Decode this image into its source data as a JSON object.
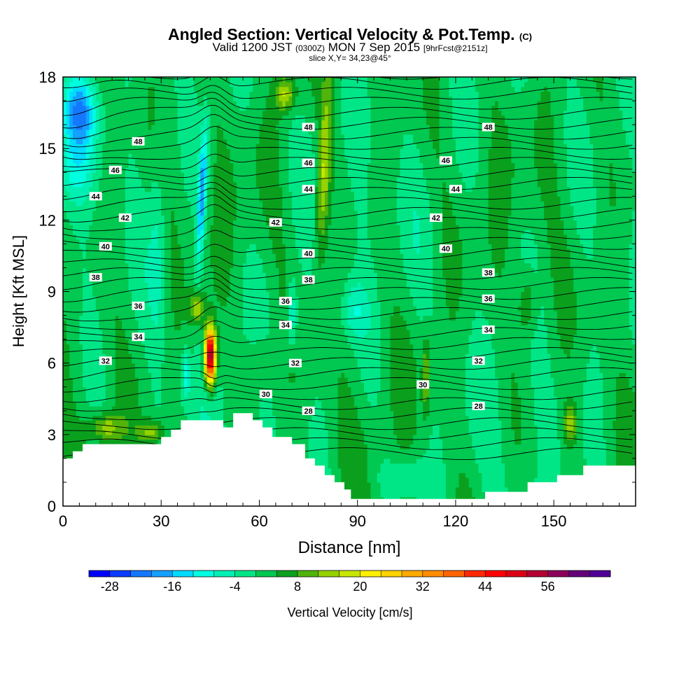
{
  "header": {
    "title": "Angled Section: Vertical Velocity & Pot.Temp.",
    "title_suffix": "(C)",
    "valid_a": "Valid 1200 JST",
    "valid_utc": "(0300Z)",
    "valid_b": "MON 7 Sep 2015",
    "fcst": "[9hrFcst@2151z]",
    "slice": "slice X,Y= 34,23@45°"
  },
  "chart_data": {
    "type": "heatmap",
    "title": "Angled Section: Vertical Velocity & Pot.Temp.",
    "xlabel": "Distance [nm]",
    "ylabel": "Height [Kft MSL]",
    "xlim": [
      0,
      175
    ],
    "ylim": [
      0,
      18
    ],
    "xticks": [
      0,
      30,
      60,
      90,
      120,
      150
    ],
    "yticks": [
      0,
      3,
      6,
      9,
      12,
      15,
      18
    ],
    "colorbar": {
      "label": "Vertical Velocity [cm/s]",
      "min": -32,
      "step": 4,
      "tick_labels": [
        -28,
        -16,
        -4,
        8,
        20,
        32,
        44,
        56
      ],
      "colors": [
        "#0000ff",
        "#0a3cff",
        "#1478ff",
        "#14a0ff",
        "#00dcff",
        "#00ffe0",
        "#00f0b4",
        "#00e687",
        "#00c850",
        "#0aa01e",
        "#50b40a",
        "#96d200",
        "#c8e600",
        "#fff000",
        "#ffd200",
        "#ffaa00",
        "#ff8c00",
        "#ff6400",
        "#ff2800",
        "#ff0000",
        "#dc0014",
        "#b40032",
        "#8c005a",
        "#640078",
        "#500096"
      ]
    },
    "features": [
      {
        "kind": "updraft",
        "x": 45,
        "height": 6.3,
        "peak": 60
      },
      {
        "kind": "downdraft",
        "x": 42,
        "height": 13,
        "min": -20
      },
      {
        "kind": "downdraft",
        "x": 6,
        "height": 16.5,
        "min": -20
      },
      {
        "kind": "downdraft",
        "x": 70,
        "height": 8,
        "min": -12
      },
      {
        "kind": "downdraft",
        "x": 38,
        "height": 5,
        "min": -12
      }
    ],
    "terrain": [
      [
        0,
        2
      ],
      [
        3,
        2
      ],
      [
        3,
        2.3
      ],
      [
        6,
        2.3
      ],
      [
        6,
        2.6
      ],
      [
        30,
        2.6
      ],
      [
        30,
        2.9
      ],
      [
        33,
        2.9
      ],
      [
        33,
        3.2
      ],
      [
        36,
        3.2
      ],
      [
        36,
        3.6
      ],
      [
        49,
        3.6
      ],
      [
        49,
        3.3
      ],
      [
        52,
        3.3
      ],
      [
        52,
        3.9
      ],
      [
        58,
        3.9
      ],
      [
        58,
        3.6
      ],
      [
        61,
        3.6
      ],
      [
        61,
        3.3
      ],
      [
        64,
        3.3
      ],
      [
        64,
        2.9
      ],
      [
        70,
        2.9
      ],
      [
        70,
        2.6
      ],
      [
        74,
        2.6
      ],
      [
        74,
        2
      ],
      [
        77,
        2
      ],
      [
        77,
        1.7
      ],
      [
        80,
        1.7
      ],
      [
        80,
        1.3
      ],
      [
        83,
        1.3
      ],
      [
        83,
        1
      ],
      [
        86,
        1
      ],
      [
        86,
        0.7
      ],
      [
        88,
        0.7
      ],
      [
        88,
        0.3
      ],
      [
        129,
        0.3
      ],
      [
        129,
        0.6
      ],
      [
        142,
        0.6
      ],
      [
        142,
        1
      ],
      [
        151,
        1
      ],
      [
        151,
        1.3
      ],
      [
        159,
        1.3
      ],
      [
        159,
        1.7
      ],
      [
        175,
        1.7
      ]
    ],
    "potential_temperature": {
      "units": "C",
      "label_values": [
        28,
        30,
        32,
        34,
        36,
        38,
        40,
        42,
        44,
        46,
        48
      ],
      "labels": [
        {
          "x": 23,
          "y": 15.3,
          "v": 48
        },
        {
          "x": 75,
          "y": 15.9,
          "v": 48
        },
        {
          "x": 130,
          "y": 15.9,
          "v": 48
        },
        {
          "x": 16,
          "y": 14.1,
          "v": 46
        },
        {
          "x": 75,
          "y": 14.4,
          "v": 46
        },
        {
          "x": 117,
          "y": 14.5,
          "v": 46
        },
        {
          "x": 10,
          "y": 13,
          "v": 44
        },
        {
          "x": 75,
          "y": 13.3,
          "v": 44
        },
        {
          "x": 120,
          "y": 13.3,
          "v": 44
        },
        {
          "x": 19,
          "y": 12.1,
          "v": 42
        },
        {
          "x": 65,
          "y": 11.9,
          "v": 42
        },
        {
          "x": 114,
          "y": 12.1,
          "v": 42
        },
        {
          "x": 13,
          "y": 10.9,
          "v": 40
        },
        {
          "x": 75,
          "y": 10.6,
          "v": 40
        },
        {
          "x": 117,
          "y": 10.8,
          "v": 40
        },
        {
          "x": 10,
          "y": 9.6,
          "v": 38
        },
        {
          "x": 75,
          "y": 9.5,
          "v": 38
        },
        {
          "x": 130,
          "y": 9.8,
          "v": 38
        },
        {
          "x": 23,
          "y": 8.4,
          "v": 36
        },
        {
          "x": 68,
          "y": 8.6,
          "v": 36
        },
        {
          "x": 130,
          "y": 8.7,
          "v": 36
        },
        {
          "x": 23,
          "y": 7.1,
          "v": 34
        },
        {
          "x": 68,
          "y": 7.6,
          "v": 34
        },
        {
          "x": 130,
          "y": 7.4,
          "v": 34
        },
        {
          "x": 13,
          "y": 6.1,
          "v": 32
        },
        {
          "x": 71,
          "y": 6,
          "v": 32
        },
        {
          "x": 127,
          "y": 6.1,
          "v": 32
        },
        {
          "x": 62,
          "y": 4.7,
          "v": 30
        },
        {
          "x": 110,
          "y": 5.1,
          "v": 30
        },
        {
          "x": 75,
          "y": 4,
          "v": 28
        },
        {
          "x": 127,
          "y": 4.2,
          "v": 28
        }
      ]
    }
  }
}
